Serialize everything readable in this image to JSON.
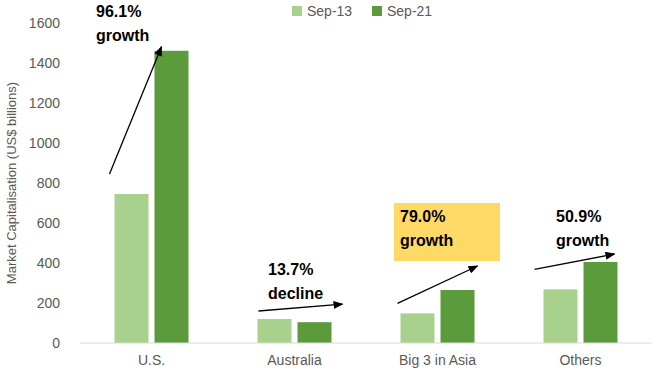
{
  "chart_data": {
    "type": "bar",
    "y_label": "Market Capitalisation (US$ billions)",
    "categories": [
      "U.S.",
      "Australia",
      "Big 3 in Asia",
      "Others"
    ],
    "series": [
      {
        "name": "Sep-13",
        "color": "#a9d18e",
        "values": [
          745,
          120,
          148,
          268
        ]
      },
      {
        "name": "Sep-21",
        "color": "#5b9b3c",
        "values": [
          1461,
          104,
          265,
          405
        ]
      }
    ],
    "ylim": [
      0,
      1600
    ],
    "yticks": [
      0,
      200,
      400,
      600,
      800,
      1000,
      1200,
      1400,
      1600
    ],
    "grid": false,
    "legend": "top",
    "annotations": [
      {
        "lines": [
          "96.1%",
          "growth"
        ]
      },
      {
        "lines": [
          "13.7%",
          "decline"
        ]
      },
      {
        "lines": [
          "79.0%",
          "growth"
        ],
        "color": "#ffd966"
      },
      {
        "lines": [
          "50.9%",
          "growth"
        ]
      }
    ]
  }
}
